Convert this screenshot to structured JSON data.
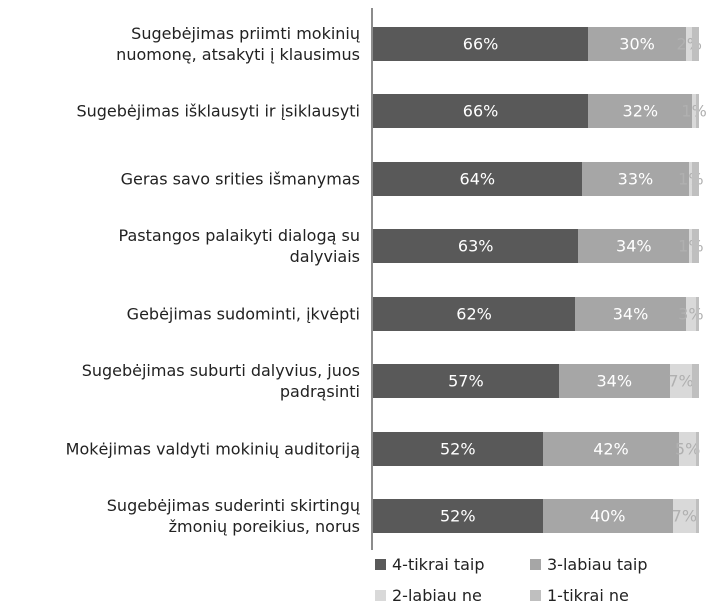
{
  "chart_data": {
    "type": "stacked-bar-horizontal",
    "categories": [
      "Sugebėjimas priimti mokinių\nnuomonę, atsakyti į klausimus",
      "Sugebėjimas išklausyti ir įsiklausyti",
      "Geras savo srities išmanymas",
      "Pastangos palaikyti dialogą su\ndalyviais",
      "Gebėjimas sudominti, įkvėpti",
      "Sugebėjimas suburti dalyvius, juos\npadrąsinti",
      "Mokėjimas valdyti mokinių auditoriją",
      "Sugebėjimas suderinti skirtingų\nžmonių poreikius, norus"
    ],
    "xlim": [
      0,
      100
    ],
    "series": [
      {
        "name": "4-tikrai taip",
        "color": "#595959",
        "label_color": "#ffffff",
        "values": [
          66,
          66,
          64,
          63,
          62,
          57,
          52,
          52
        ],
        "value_labels": [
          "66%",
          "66%",
          "64%",
          "63%",
          "62%",
          "57%",
          "52%",
          "52%"
        ]
      },
      {
        "name": "3-labiau taip",
        "color": "#a6a6a6",
        "label_color": "#ffffff",
        "values": [
          30,
          32,
          33,
          34,
          34,
          34,
          42,
          40
        ],
        "value_labels": [
          "30%",
          "32%",
          "33%",
          "34%",
          "34%",
          "34%",
          "42%",
          "40%"
        ]
      },
      {
        "name": "2-labiau ne",
        "color": "#d9d9d9",
        "label_color": "#b0b0b0",
        "values": [
          2,
          1,
          1,
          1,
          3,
          7,
          5,
          7
        ],
        "value_labels": [
          "2%",
          "1%",
          "1%",
          "1%",
          "3%",
          "7%",
          "5%",
          "7%"
        ]
      },
      {
        "name": "1-tikrai ne",
        "color": "#bfbfbf",
        "values": [
          2,
          1,
          2,
          2,
          1,
          2,
          1,
          1
        ]
      }
    ]
  }
}
